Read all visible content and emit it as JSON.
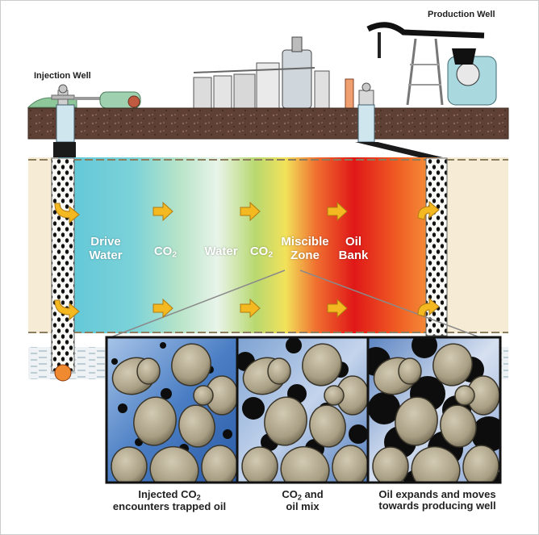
{
  "labels": {
    "injection_well": "Injection Well",
    "production_well": "Production Well"
  },
  "zones": {
    "drive_water_line1": "Drive",
    "drive_water_line2": "Water",
    "co2_first_main": "CO",
    "co2_first_sub": "2",
    "water": "Water",
    "co2_second_main": "CO",
    "co2_second_sub": "2",
    "miscible_line1": "Miscible",
    "miscible_line2": "Zone",
    "oil_bank_line1": "Oil",
    "oil_bank_line2": "Bank"
  },
  "captions": {
    "panel1_line1_main": "Injected CO",
    "panel1_line1_sub": "2",
    "panel1_line2": "encounters trapped oil",
    "panel2_line1_main": "CO",
    "panel2_line1_sub": "2",
    "panel2_line1_rest": " and",
    "panel2_line2": "oil mix",
    "panel3_line1": "Oil expands and moves",
    "panel3_line2": "towards producing well"
  },
  "colors": {
    "drive_water": "#5ec6d8",
    "water": "#d8eee8",
    "co2": "#b8d870",
    "miscible": "#f07030",
    "oil_bank": "#e01818",
    "arrow": "#f4b820",
    "ground": "#6a4a3c",
    "rock_grain": "#b3a990",
    "oil": "#0d0d0d"
  }
}
